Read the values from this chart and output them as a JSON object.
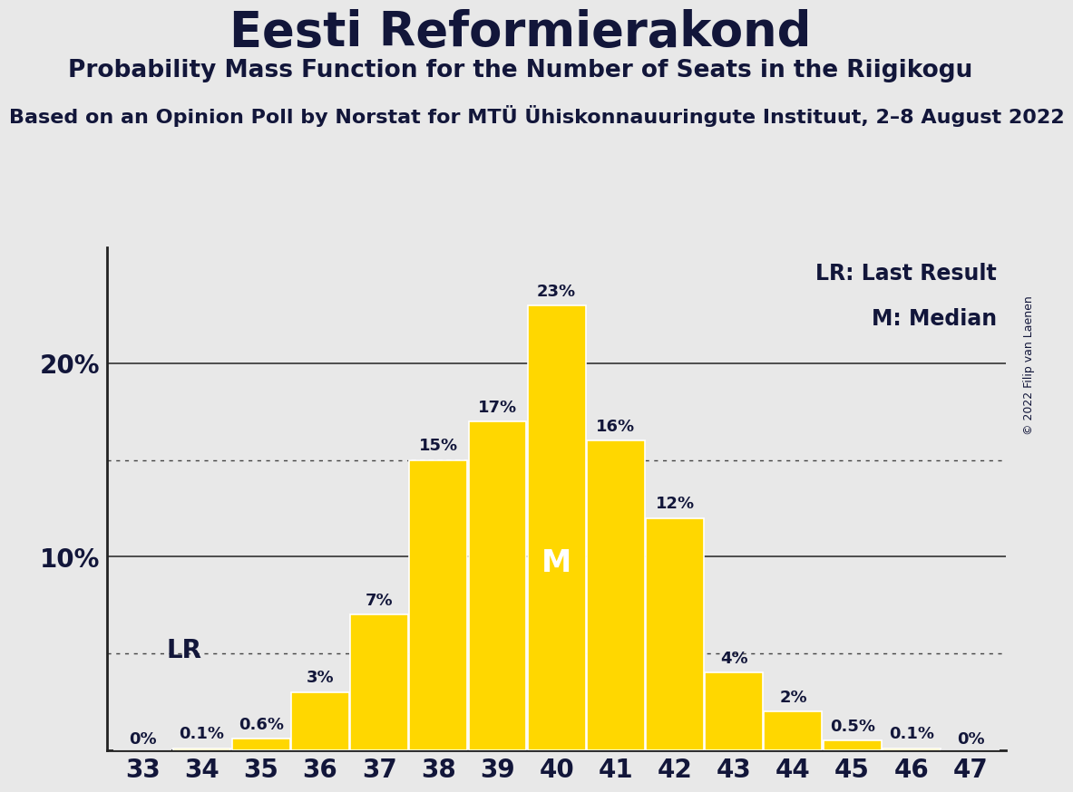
{
  "title": "Eesti Reformierakond",
  "subtitle": "Probability Mass Function for the Number of Seats in the Riigikogu",
  "source_line": "Based on an Opinion Poll by Norstat for MTÜ Ühiskonnauuringute Instituut, 2–8 August 2022",
  "copyright": "© 2022 Filip van Laenen",
  "seats": [
    33,
    34,
    35,
    36,
    37,
    38,
    39,
    40,
    41,
    42,
    43,
    44,
    45,
    46,
    47
  ],
  "probabilities": [
    0.0,
    0.1,
    0.6,
    3.0,
    7.0,
    15.0,
    17.0,
    23.0,
    16.0,
    12.0,
    4.0,
    2.0,
    0.5,
    0.1,
    0.0
  ],
  "bar_labels": [
    "0%",
    "0.1%",
    "0.6%",
    "3%",
    "7%",
    "15%",
    "17%",
    "23%",
    "16%",
    "12%",
    "4%",
    "2%",
    "0.5%",
    "0.1%",
    "0%"
  ],
  "bar_color": "#FFD700",
  "bar_edge_color": "#FFFFFF",
  "background_color": "#E8E8E8",
  "dotted_lines": [
    5.0,
    15.0
  ],
  "solid_lines": [
    10.0,
    20.0
  ],
  "ylim": [
    0,
    26
  ],
  "LR_seat": 34,
  "median_seat": 40,
  "title_fontsize": 38,
  "subtitle_fontsize": 19,
  "source_fontsize": 16,
  "text_color": "#12163a",
  "legend_text_LR": "LR: Last Result",
  "legend_text_M": "M: Median",
  "bar_width": 0.98
}
